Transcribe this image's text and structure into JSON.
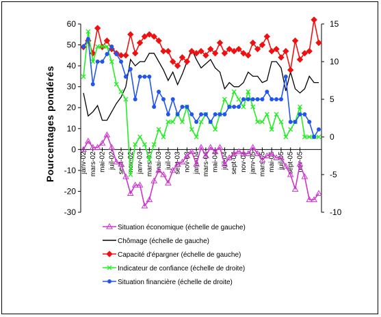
{
  "chart_data": {
    "type": "line",
    "ylabel": "Pourcentages pondérés",
    "y_left": {
      "min": -30,
      "max": 60,
      "step": 10
    },
    "y_right": {
      "min": -10,
      "max": 15,
      "step": 5
    },
    "grid": false,
    "legend_position": "bottom",
    "x_labels": [
      "janv-02",
      "mars-02",
      "mai-02",
      "juil-02",
      "sept-02",
      "nov-02",
      "janv-03",
      "mars-03",
      "mai-03",
      "juil-03",
      "sept-03",
      "nov-03",
      "janv-04",
      "mars-04",
      "mai-04",
      "juil-04",
      "sept-04",
      "nov-04",
      "janv-05",
      "mars-05",
      "mai-05",
      "juil-05",
      "sept-05",
      "nov-05"
    ],
    "series": [
      {
        "name": "Situation économique (échelle de gauche)",
        "axis": "left",
        "color": "#cc33cc",
        "marker": "triangle-open",
        "values": [
          0,
          4,
          1,
          1,
          3,
          7,
          1,
          -6,
          -7,
          -13,
          -21,
          -17,
          -17,
          -27,
          -24,
          -15,
          -10,
          -12,
          -16,
          -10,
          -7,
          -6,
          -3,
          -1,
          -7,
          1,
          -3,
          1,
          -1,
          1,
          -7,
          -4,
          -2,
          -1,
          -2,
          -2,
          1,
          -2,
          -5,
          -3,
          -2,
          -4,
          -4,
          -8,
          -12,
          -19,
          -7,
          -13,
          -24,
          -24,
          -21
        ]
      },
      {
        "name": "Chômage (échelle de gauche)",
        "axis": "left",
        "color": "#000000",
        "marker": "none",
        "values": [
          27,
          16,
          18,
          21,
          14,
          14,
          18,
          22,
          25,
          30,
          43,
          40,
          42,
          42,
          46,
          46,
          42,
          38,
          33,
          37,
          31,
          36,
          42,
          48,
          43,
          39,
          41,
          43,
          39,
          37,
          29,
          32,
          30,
          30,
          32,
          37,
          35,
          35,
          32,
          33,
          42,
          42,
          39,
          28,
          37,
          29,
          27,
          29,
          35,
          32,
          32
        ]
      },
      {
        "name": "Capacité d'épargner (échelle de gauche)",
        "axis": "left",
        "color": "#ee1111",
        "marker": "diamond",
        "values": [
          49,
          52,
          46,
          58,
          49,
          52,
          48,
          46,
          45,
          45,
          55,
          46,
          51,
          54,
          55,
          54,
          52,
          47,
          47,
          42,
          40,
          44,
          42,
          47,
          46,
          47,
          45,
          48,
          46,
          51,
          46,
          48,
          47,
          48,
          46,
          45,
          51,
          48,
          50,
          54,
          47,
          48,
          44,
          47,
          38,
          52,
          43,
          46,
          47,
          62,
          51
        ]
      },
      {
        "name": "Indicateur de confiance (échelle de droite)",
        "axis": "right",
        "color": "#22ee22",
        "marker": "x",
        "values": [
          8,
          14,
          10,
          12,
          12,
          12,
          10,
          7,
          6,
          5,
          -5,
          -1,
          0,
          -1,
          -3,
          -1,
          1,
          0,
          2,
          2,
          3,
          2,
          4,
          1,
          0,
          2,
          3,
          2,
          1,
          3,
          5,
          4,
          6,
          5,
          4,
          6,
          4,
          2,
          2,
          3,
          1,
          3,
          2,
          0,
          1,
          2,
          4,
          0,
          0,
          0,
          0
        ]
      },
      {
        "name": "Situation financière (échelle de droite)",
        "axis": "right",
        "color": "#2255ee",
        "marker": "dot",
        "values": [
          12,
          13,
          7,
          10,
          10,
          11,
          12,
          11,
          10,
          8,
          9,
          5,
          8,
          8,
          8,
          4,
          6,
          5,
          3,
          5,
          3,
          4,
          4,
          3,
          2,
          3,
          3,
          2,
          3,
          3,
          3,
          4,
          4,
          4,
          5,
          5,
          5,
          5,
          5,
          6,
          5,
          5,
          5,
          8,
          2,
          2,
          3,
          3,
          2,
          0,
          1
        ]
      }
    ]
  }
}
